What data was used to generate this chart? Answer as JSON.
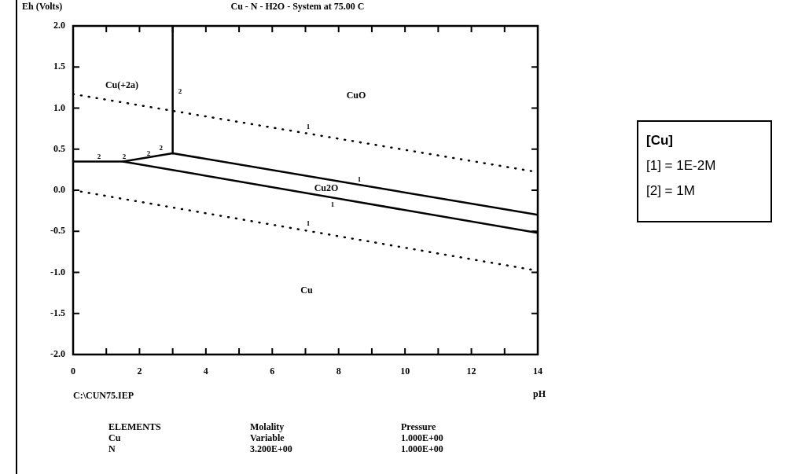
{
  "chart_data": {
    "type": "line",
    "title": "Cu - N - H2O - System at 75.00 C",
    "xlabel": "pH",
    "ylabel": "Eh (Volts)",
    "series": [
      {
        "color": "#000000",
        "x": [
          3,
          3
        ],
        "values": [
          2.0,
          0.45
        ]
      },
      {
        "color": "#000000",
        "x": [
          0,
          1.5,
          3,
          14
        ],
        "values": [
          0.35,
          0.35,
          0.45,
          -0.3
        ]
      },
      {
        "color": "#000000",
        "x": [
          1.5,
          14
        ],
        "values": [
          0.35,
          -0.52
        ]
      },
      {
        "color": "#000000",
        "x": [
          0,
          14
        ],
        "values": [
          1.17,
          0.22
        ],
        "line_style": "dotted"
      },
      {
        "color": "#000000",
        "x": [
          0,
          14
        ],
        "values": [
          0,
          -0.98
        ],
        "line_style": "dotted"
      }
    ],
    "xlim": [
      0,
      14
    ],
    "xticks": [
      0,
      {
        "value": 1,
        "label": null
      },
      2,
      {
        "value": 3,
        "label": null
      },
      4,
      {
        "value": 5,
        "label": null
      },
      6,
      {
        "value": 7,
        "label": null
      },
      8,
      {
        "value": 9,
        "label": null
      },
      10,
      {
        "value": 11,
        "label": null
      },
      12,
      {
        "value": 13,
        "label": null
      },
      14
    ],
    "ylim": [
      -2,
      2
    ],
    "yticks": [
      {
        "value": -2,
        "label": "-2.0"
      },
      {
        "value": -1.5,
        "label": "-1.5"
      },
      {
        "value": -1,
        "label": "-1.0"
      },
      {
        "value": -0.5,
        "label": "-0.5"
      },
      {
        "value": 0,
        "label": "0.0"
      },
      {
        "value": 0.5,
        "label": "0.5"
      },
      {
        "value": 1,
        "label": "1.0"
      },
      {
        "value": 1.5,
        "label": "1.5"
      },
      {
        "value": 2,
        "label": "2.0"
      }
    ],
    "grid": false,
    "legend": false,
    "marker": "none",
    "line_style": "solid",
    "annotations": [
      "Cu(+2a)",
      "CuO",
      "Cu2O",
      "Cu",
      "2",
      "2",
      "2",
      "2",
      {
        "text": "2",
        "x": 3,
        "y": 0.45
      },
      "1",
      "1",
      "1",
      "1",
      "C:\\CUN75.IEP",
      "[Cu]",
      "[1] = 1E-2M",
      "[2] = 1M",
      "ELEMENTS",
      "Molality",
      "Pressure",
      "Cu",
      "Variable",
      "1.000E+00",
      "N",
      "3.200E+00",
      "1.000E+00"
    ]
  }
}
